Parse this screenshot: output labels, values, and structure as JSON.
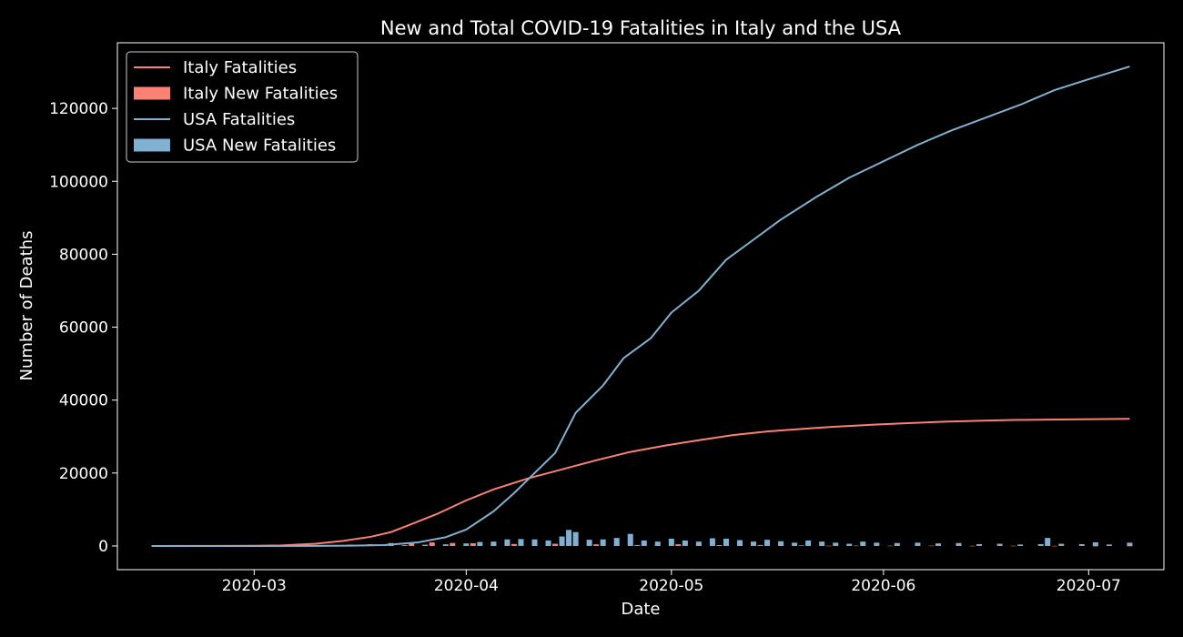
{
  "chart_data": {
    "type": "line",
    "title": "New and Total COVID-19 Fatalities in Italy and the USA",
    "xlabel": "Date",
    "ylabel": "Number of Deaths",
    "x_range": [
      "2020-02-10",
      "2020-07-12"
    ],
    "ylim": [
      -6500,
      138000
    ],
    "x_ticks": [
      "2020-03",
      "2020-04",
      "2020-05",
      "2020-06",
      "2020-07"
    ],
    "x_tick_dates": [
      "2020-03-01",
      "2020-04-01",
      "2020-05-01",
      "2020-06-01",
      "2020-07-01"
    ],
    "y_ticks": [
      0,
      20000,
      40000,
      60000,
      80000,
      100000,
      120000
    ],
    "legend_position": "upper-left",
    "grid": false,
    "colors": {
      "background": "#000000",
      "text": "#ffffff",
      "italy": "#fa8174",
      "usa": "#81b1d2"
    },
    "series": [
      {
        "name": "Italy Fatalities",
        "kind": "line",
        "color": "#fa8174",
        "points": [
          [
            "2020-02-15",
            0
          ],
          [
            "2020-02-25",
            10
          ],
          [
            "2020-03-01",
            50
          ],
          [
            "2020-03-05",
            150
          ],
          [
            "2020-03-10",
            600
          ],
          [
            "2020-03-14",
            1400
          ],
          [
            "2020-03-18",
            2500
          ],
          [
            "2020-03-21",
            3800
          ],
          [
            "2020-03-24",
            6000
          ],
          [
            "2020-03-28",
            9000
          ],
          [
            "2020-04-01",
            12500
          ],
          [
            "2020-04-05",
            15500
          ],
          [
            "2020-04-10",
            18500
          ],
          [
            "2020-04-15",
            21000
          ],
          [
            "2020-04-20",
            23500
          ],
          [
            "2020-04-25",
            25800
          ],
          [
            "2020-04-30",
            27500
          ],
          [
            "2020-05-05",
            29000
          ],
          [
            "2020-05-10",
            30400
          ],
          [
            "2020-05-15",
            31400
          ],
          [
            "2020-05-20",
            32100
          ],
          [
            "2020-05-25",
            32700
          ],
          [
            "2020-05-31",
            33300
          ],
          [
            "2020-06-05",
            33700
          ],
          [
            "2020-06-10",
            34100
          ],
          [
            "2020-06-15",
            34350
          ],
          [
            "2020-06-20",
            34550
          ],
          [
            "2020-06-25",
            34650
          ],
          [
            "2020-06-30",
            34750
          ],
          [
            "2020-07-07",
            34850
          ]
        ]
      },
      {
        "name": "Italy New Fatalities",
        "kind": "bar",
        "color": "#fa8174",
        "points": [
          [
            "2020-03-01",
            10
          ],
          [
            "2020-03-05",
            40
          ],
          [
            "2020-03-09",
            100
          ],
          [
            "2020-03-12",
            190
          ],
          [
            "2020-03-15",
            370
          ],
          [
            "2020-03-18",
            475
          ],
          [
            "2020-03-21",
            795
          ],
          [
            "2020-03-24",
            740
          ],
          [
            "2020-03-27",
            970
          ],
          [
            "2020-03-30",
            810
          ],
          [
            "2020-04-02",
            760
          ],
          [
            "2020-04-05",
            520
          ],
          [
            "2020-04-08",
            540
          ],
          [
            "2020-04-11",
            620
          ],
          [
            "2020-04-14",
            600
          ],
          [
            "2020-04-17",
            520
          ],
          [
            "2020-04-20",
            450
          ],
          [
            "2020-04-23",
            460
          ],
          [
            "2020-04-26",
            260
          ],
          [
            "2020-04-29",
            320
          ],
          [
            "2020-05-02",
            470
          ],
          [
            "2020-05-05",
            240
          ],
          [
            "2020-05-08",
            240
          ],
          [
            "2020-05-11",
            180
          ],
          [
            "2020-05-14",
            260
          ],
          [
            "2020-05-17",
            150
          ],
          [
            "2020-05-20",
            160
          ],
          [
            "2020-05-24",
            50
          ],
          [
            "2020-05-28",
            90
          ],
          [
            "2020-06-02",
            60
          ],
          [
            "2020-06-08",
            70
          ],
          [
            "2020-06-14",
            40
          ],
          [
            "2020-06-20",
            50
          ],
          [
            "2020-06-26",
            30
          ],
          [
            "2020-07-02",
            20
          ],
          [
            "2020-07-07",
            30
          ]
        ]
      },
      {
        "name": "USA Fatalities",
        "kind": "line",
        "color": "#81b1d2",
        "points": [
          [
            "2020-02-15",
            0
          ],
          [
            "2020-03-01",
            1
          ],
          [
            "2020-03-10",
            30
          ],
          [
            "2020-03-15",
            70
          ],
          [
            "2020-03-20",
            250
          ],
          [
            "2020-03-25",
            1000
          ],
          [
            "2020-03-29",
            2400
          ],
          [
            "2020-04-01",
            4500
          ],
          [
            "2020-04-05",
            9500
          ],
          [
            "2020-04-08",
            14500
          ],
          [
            "2020-04-11",
            20000
          ],
          [
            "2020-04-14",
            25500
          ],
          [
            "2020-04-17",
            36500
          ],
          [
            "2020-04-21",
            44000
          ],
          [
            "2020-04-24",
            51500
          ],
          [
            "2020-04-28",
            57000
          ],
          [
            "2020-05-01",
            64000
          ],
          [
            "2020-05-05",
            70000
          ],
          [
            "2020-05-09",
            78500
          ],
          [
            "2020-05-13",
            84000
          ],
          [
            "2020-05-17",
            89500
          ],
          [
            "2020-05-22",
            95500
          ],
          [
            "2020-05-27",
            101000
          ],
          [
            "2020-06-01",
            105500
          ],
          [
            "2020-06-06",
            110000
          ],
          [
            "2020-06-11",
            114000
          ],
          [
            "2020-06-16",
            117500
          ],
          [
            "2020-06-21",
            121000
          ],
          [
            "2020-06-26",
            125000
          ],
          [
            "2020-07-01",
            128000
          ],
          [
            "2020-07-07",
            131500
          ]
        ]
      },
      {
        "name": "USA New Fatalities",
        "kind": "bar",
        "color": "#81b1d2",
        "points": [
          [
            "2020-03-17",
            80
          ],
          [
            "2020-03-20",
            150
          ],
          [
            "2020-03-23",
            220
          ],
          [
            "2020-03-26",
            350
          ],
          [
            "2020-03-29",
            450
          ],
          [
            "2020-04-01",
            700
          ],
          [
            "2020-04-03",
            1100
          ],
          [
            "2020-04-05",
            1200
          ],
          [
            "2020-04-07",
            1800
          ],
          [
            "2020-04-09",
            1900
          ],
          [
            "2020-04-11",
            1800
          ],
          [
            "2020-04-13",
            1500
          ],
          [
            "2020-04-15",
            2600
          ],
          [
            "2020-04-16",
            4400
          ],
          [
            "2020-04-17",
            3800
          ],
          [
            "2020-04-19",
            1700
          ],
          [
            "2020-04-21",
            1800
          ],
          [
            "2020-04-23",
            2200
          ],
          [
            "2020-04-25",
            3300
          ],
          [
            "2020-04-27",
            1500
          ],
          [
            "2020-04-29",
            1200
          ],
          [
            "2020-05-01",
            2000
          ],
          [
            "2020-05-03",
            1500
          ],
          [
            "2020-05-05",
            1200
          ],
          [
            "2020-05-07",
            2100
          ],
          [
            "2020-05-09",
            2000
          ],
          [
            "2020-05-11",
            1600
          ],
          [
            "2020-05-13",
            1200
          ],
          [
            "2020-05-15",
            1700
          ],
          [
            "2020-05-17",
            1300
          ],
          [
            "2020-05-19",
            900
          ],
          [
            "2020-05-21",
            1500
          ],
          [
            "2020-05-23",
            1200
          ],
          [
            "2020-05-25",
            900
          ],
          [
            "2020-05-27",
            600
          ],
          [
            "2020-05-29",
            1200
          ],
          [
            "2020-05-31",
            900
          ],
          [
            "2020-06-03",
            800
          ],
          [
            "2020-06-06",
            900
          ],
          [
            "2020-06-09",
            700
          ],
          [
            "2020-06-12",
            800
          ],
          [
            "2020-06-15",
            500
          ],
          [
            "2020-06-18",
            600
          ],
          [
            "2020-06-21",
            400
          ],
          [
            "2020-06-24",
            500
          ],
          [
            "2020-06-25",
            2200
          ],
          [
            "2020-06-27",
            600
          ],
          [
            "2020-06-30",
            500
          ],
          [
            "2020-07-02",
            1000
          ],
          [
            "2020-07-04",
            400
          ],
          [
            "2020-07-07",
            900
          ]
        ]
      }
    ]
  }
}
